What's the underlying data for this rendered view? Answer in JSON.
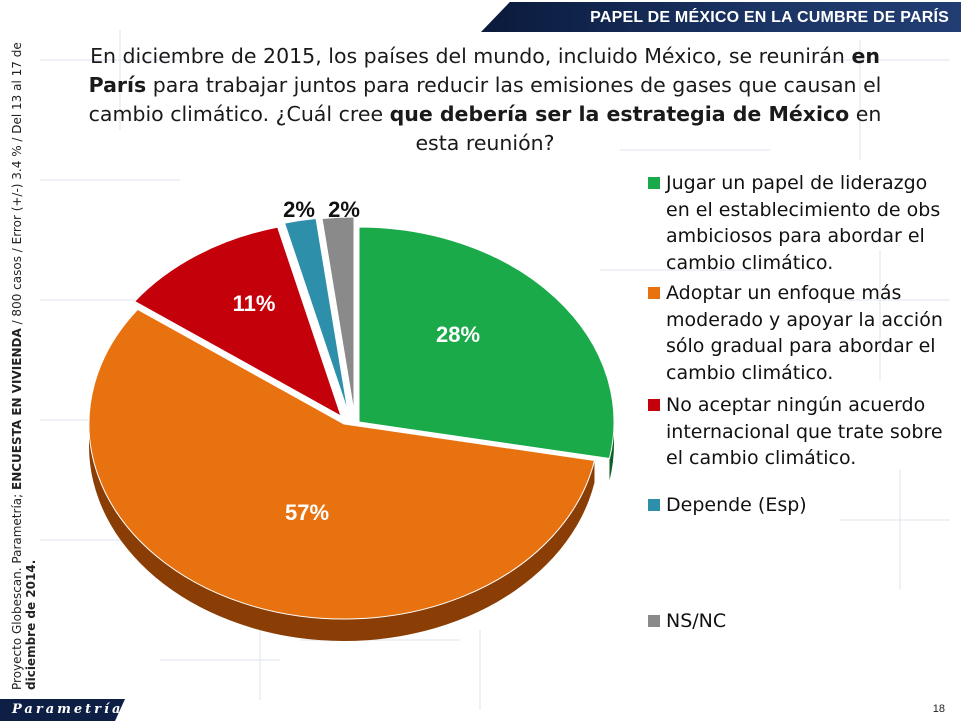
{
  "header": {
    "title": "PAPEL DE MÉXICO EN LA CUMBRE DE PARÍS"
  },
  "question": {
    "p1": "En diciembre de 2015, los países del mundo, incluido México, se reunirán ",
    "b1": "en París",
    "p2": " para trabajar juntos para reducir las emisiones de gases que causan el cambio climático. ¿Cuál cree ",
    "b2": "que debería ser la estrategia de México",
    "p3": " en esta reunión?"
  },
  "side_note": {
    "p1": "Proyecto Globescan.  Parametría; ",
    "b1": "ENCUESTA EN VIVIENDA",
    "p2": " / 800  casos / Error (+/-) 3.4 % / Del 13  al 17  de ",
    "b2": "diciembre de 2014."
  },
  "footer": {
    "logo": "Parametría",
    "page_number": "18"
  },
  "chart_data": {
    "type": "pie",
    "slices": [
      {
        "label": "Jugar un papel de liderazgo en el establecimiento de obs ambiciosos para abordar el cambio climático.",
        "value": 28,
        "display": "28%",
        "color": "#1aaa4a",
        "side_color": "#0f5e28"
      },
      {
        "label": "Adoptar un enfoque más moderado y apoyar la acción sólo gradual para abordar el cambio climático.",
        "value": 57,
        "display": "57%",
        "color": "#e8720f",
        "side_color": "#8a3e06"
      },
      {
        "label": "No aceptar ningún acuerdo internacional que trate sobre el cambio climático.",
        "value": 11,
        "display": "11%",
        "color": "#c4000b",
        "side_color": "#6a0006"
      },
      {
        "label": "Depende (Esp)",
        "value": 2,
        "display": "2%",
        "color": "#2e8fab",
        "side_color": "#175566"
      },
      {
        "label": "NS/NC",
        "value": 2,
        "display": "2%",
        "color": "#8a8a8a",
        "side_color": "#4d4d4d"
      }
    ],
    "legend_position": "right"
  }
}
